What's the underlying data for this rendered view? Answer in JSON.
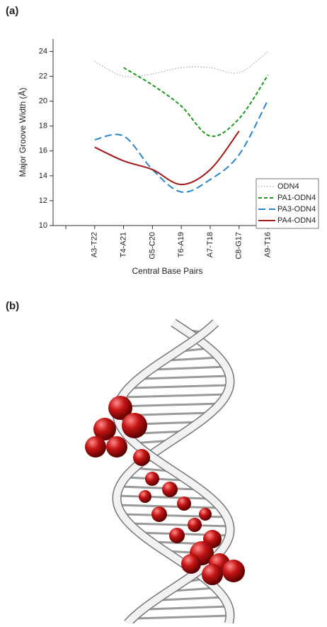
{
  "panel_labels": [
    "(a)",
    "(b)"
  ],
  "chart_data": {
    "type": "line",
    "y_label": "Major Groove Width (Å)",
    "x_label": "Central Base Pairs",
    "categories": [
      null,
      "A3-T22",
      "T4-A21",
      "G5-C20",
      "T6-A19",
      "A7-T18",
      "C8-G17",
      "A9-T16"
    ],
    "series": [
      {
        "name": "ODN4",
        "color": "#aaaaaa",
        "style": "dotted",
        "values": [
          null,
          23.2,
          22.0,
          22.2,
          22.7,
          22.7,
          22.3,
          24.0
        ]
      },
      {
        "name": "PA1-ODN4",
        "color": "#1a9a1a",
        "style": "dashed",
        "values": [
          null,
          null,
          22.7,
          21.3,
          19.6,
          17.2,
          18.6,
          22.1
        ]
      },
      {
        "name": "PA3-ODN4",
        "color": "#2a86c8",
        "style": "long-dashed",
        "values": [
          null,
          16.9,
          17.2,
          14.5,
          12.7,
          13.7,
          15.7,
          20.1
        ]
      },
      {
        "name": "PA4-ODN4",
        "color": "#a01818",
        "style": "solid",
        "values": [
          null,
          16.3,
          15.2,
          14.5,
          13.3,
          14.5,
          17.6,
          null
        ]
      }
    ],
    "ylim": [
      10,
      25
    ],
    "yticks": [
      10,
      12,
      14,
      16,
      18,
      20,
      22,
      24
    ],
    "legend": "lower right",
    "grid": false
  }
}
